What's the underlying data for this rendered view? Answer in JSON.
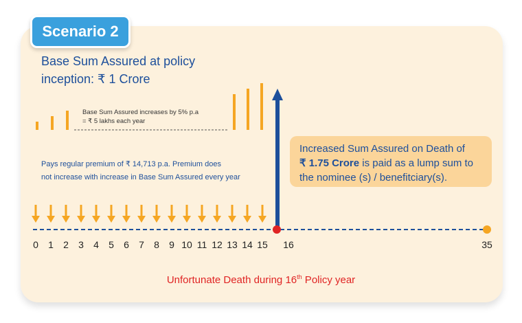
{
  "scenario_tag": "Scenario 2",
  "base_sum": {
    "line1": "Base Sum Assured at policy",
    "line2": "inception: ₹ 1 Crore"
  },
  "increase_note": {
    "line1": "Base Sum Assured increases by 5% p.a",
    "line2": "= ₹ 5 lakhs each year"
  },
  "premium_note": {
    "line1": "Pays regular premium of ₹ 14,713 p.a. Premium does",
    "line2": "not increase with increase in Base Sum Assured every year"
  },
  "callout": {
    "line1": "Increased Sum Assured on Death of",
    "amount": "₹ 1.75 Crore",
    "line2_rest": " is paid as a lump sum to",
    "line3": "the nominee (s) / benefitciary(s)."
  },
  "death_note": {
    "before": "Unfortunate Death during 16",
    "sup": "th",
    "after": " Policy year"
  },
  "timeline": {
    "year_labels": [
      "0",
      "1",
      "2",
      "3",
      "4",
      "5",
      "6",
      "7",
      "8",
      "9",
      "10",
      "11",
      "12",
      "13",
      "14",
      "15",
      "16"
    ],
    "end_label": "35",
    "premium_arrow_count": 16
  },
  "colors": {
    "accent_orange": "#f5a623",
    "blue": "#1d4f9b",
    "tag_blue": "#3aa0dd",
    "death_red": "#e02424",
    "callout_bg": "#fbd59a"
  }
}
